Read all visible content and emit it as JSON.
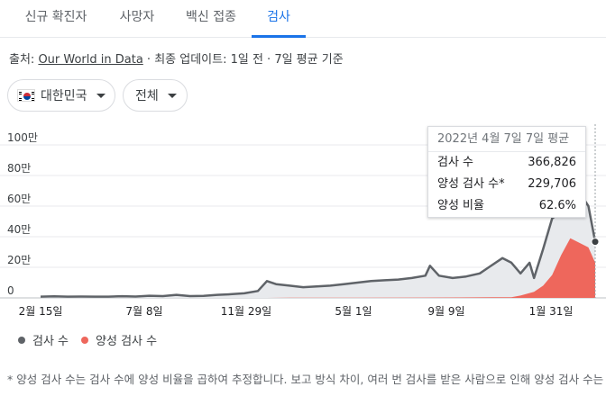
{
  "tabs": [
    "신규 확진자",
    "사망자",
    "백신 접종",
    "검사"
  ],
  "source": {
    "prefix": "출처: ",
    "link": "Our World in Data",
    "suffix": " · 최종 업데이트: 1일 전 · 7일 평균 기준"
  },
  "filters": {
    "country": "대한민국",
    "range": "전체"
  },
  "chart_data": {
    "type": "area",
    "title": "",
    "xlabel": "",
    "ylabel": "",
    "yticks": [
      "0",
      "20만",
      "40만",
      "60만",
      "80만",
      "100만"
    ],
    "ylim": [
      0,
      1000000
    ],
    "xticks": [
      "2월 15일",
      "7월 8일",
      "11월 29일",
      "5월 1일",
      "9월 9일",
      "1월 31일"
    ],
    "grid": true,
    "legend_position": "bottom-left",
    "series": [
      {
        "name": "검사 수",
        "color": "#5f6368",
        "points": [
          [
            0,
            8000
          ],
          [
            6,
            10000
          ],
          [
            12,
            8000
          ],
          [
            18,
            9000
          ],
          [
            24,
            8000
          ],
          [
            30,
            8000
          ],
          [
            36,
            11000
          ],
          [
            42,
            9000
          ],
          [
            48,
            14000
          ],
          [
            54,
            12000
          ],
          [
            60,
            20000
          ],
          [
            66,
            12000
          ],
          [
            72,
            13000
          ],
          [
            78,
            20000
          ],
          [
            84,
            24000
          ],
          [
            90,
            30000
          ],
          [
            96,
            45000
          ],
          [
            100,
            110000
          ],
          [
            104,
            90000
          ],
          [
            110,
            80000
          ],
          [
            116,
            70000
          ],
          [
            122,
            75000
          ],
          [
            128,
            80000
          ],
          [
            134,
            90000
          ],
          [
            140,
            100000
          ],
          [
            146,
            110000
          ],
          [
            152,
            115000
          ],
          [
            158,
            120000
          ],
          [
            164,
            130000
          ],
          [
            170,
            145000
          ],
          [
            172,
            210000
          ],
          [
            176,
            145000
          ],
          [
            182,
            130000
          ],
          [
            188,
            140000
          ],
          [
            194,
            160000
          ],
          [
            198,
            200000
          ],
          [
            204,
            260000
          ],
          [
            208,
            230000
          ],
          [
            212,
            160000
          ],
          [
            216,
            230000
          ],
          [
            218,
            130000
          ],
          [
            222,
            320000
          ],
          [
            226,
            520000
          ],
          [
            230,
            560000
          ],
          [
            234,
            650000
          ],
          [
            238,
            690000
          ],
          [
            242,
            600000
          ],
          [
            245,
            366826
          ]
        ]
      },
      {
        "name": "양성 검사 수",
        "color": "#ee675c",
        "points": [
          [
            0,
            0
          ],
          [
            100,
            0
          ],
          [
            110,
            1000
          ],
          [
            140,
            1500
          ],
          [
            170,
            2500
          ],
          [
            200,
            4000
          ],
          [
            208,
            5000
          ],
          [
            212,
            15000
          ],
          [
            218,
            40000
          ],
          [
            222,
            80000
          ],
          [
            226,
            150000
          ],
          [
            230,
            280000
          ],
          [
            234,
            390000
          ],
          [
            238,
            360000
          ],
          [
            242,
            330000
          ],
          [
            245,
            229706
          ]
        ]
      }
    ]
  },
  "tooltip": {
    "date": "2022년 4월 7일 7일 평균",
    "rows": [
      {
        "label": "검사 수",
        "value": "366,826"
      },
      {
        "label": "양성 검사 수*",
        "value": "229,706"
      },
      {
        "label": "양성 비율",
        "value": "62.6%"
      }
    ]
  },
  "legend": [
    "검사 수",
    "양성 검사 수"
  ],
  "footnote": "* 양성 검사 수는 검사 수에 양성 비율을 곱하여 추정합니다. 보고 방식 차이, 여러 번 검사를 받은 사람으로 인해 양성 검사 수는 양성 확진 수와 다를 수 있습니다. · 데이터 정보"
}
